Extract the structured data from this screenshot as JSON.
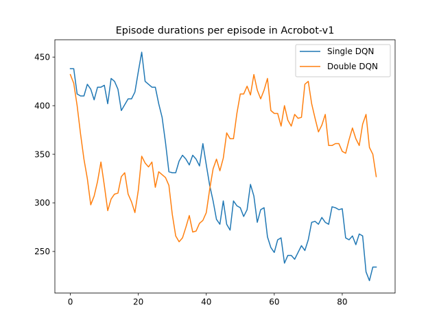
{
  "chart_data": {
    "type": "line",
    "title": "Episode durations per episode in Acrobot-v1",
    "xlabel": "",
    "ylabel": "",
    "xlim": [
      -4.55,
      95.55
    ],
    "ylim": [
      207.2,
      467.8
    ],
    "xticks": [
      0,
      20,
      40,
      60,
      80
    ],
    "yticks": [
      250,
      300,
      350,
      400,
      450
    ],
    "grid": false,
    "legend_position": "upper right",
    "series": [
      {
        "name": "Single DQN",
        "color": "#1f77b4",
        "x": [
          0,
          1,
          2,
          3,
          4,
          5,
          6,
          7,
          8,
          9,
          10,
          11,
          12,
          13,
          14,
          15,
          16,
          17,
          18,
          19,
          20,
          21,
          22,
          23,
          24,
          25,
          26,
          27,
          28,
          29,
          30,
          31,
          32,
          33,
          34,
          35,
          36,
          37,
          38,
          39,
          40,
          41,
          42,
          43,
          44,
          45,
          46,
          47,
          48,
          49,
          50,
          51,
          52,
          53,
          54,
          55,
          56,
          57,
          58,
          59,
          60,
          61,
          62,
          63,
          64,
          65,
          66,
          67,
          68,
          69,
          70,
          71,
          72,
          73,
          74,
          75,
          76,
          77,
          78,
          79,
          80,
          81,
          82,
          83,
          84,
          85,
          86,
          87,
          88,
          89,
          90
        ],
        "values": [
          438,
          438,
          412,
          410,
          410,
          422,
          417,
          406,
          419,
          419,
          421,
          402,
          428,
          425,
          417,
          395,
          401,
          407,
          407,
          414,
          435,
          455,
          425,
          422,
          419,
          419,
          402,
          388,
          362,
          332,
          331,
          331,
          343,
          349,
          345,
          339,
          349,
          345,
          338,
          361,
          339,
          318,
          302,
          283,
          278,
          302,
          278,
          272,
          302,
          297,
          295,
          286,
          293,
          319,
          307,
          280,
          293,
          295,
          265,
          254,
          249,
          262,
          264,
          238,
          246,
          246,
          242,
          249,
          256,
          251,
          262,
          280,
          281,
          278,
          285,
          280,
          278,
          296,
          295,
          293,
          294,
          264,
          262,
          266,
          257,
          268,
          266,
          229,
          220,
          234,
          234
        ]
      },
      {
        "name": "Double DQN",
        "color": "#ff7f0e",
        "x": [
          0,
          1,
          2,
          3,
          4,
          5,
          6,
          7,
          8,
          9,
          10,
          11,
          12,
          13,
          14,
          15,
          16,
          17,
          18,
          19,
          20,
          21,
          22,
          23,
          24,
          25,
          26,
          27,
          28,
          29,
          30,
          31,
          32,
          33,
          34,
          35,
          36,
          37,
          38,
          39,
          40,
          41,
          42,
          43,
          44,
          45,
          46,
          47,
          48,
          49,
          50,
          51,
          52,
          53,
          54,
          55,
          56,
          57,
          58,
          59,
          60,
          61,
          62,
          63,
          64,
          65,
          66,
          67,
          68,
          69,
          70,
          71,
          72,
          73,
          74,
          75,
          76,
          77,
          78,
          79,
          80,
          81,
          82,
          83,
          84,
          85,
          86,
          87,
          88,
          89,
          90
        ],
        "values": [
          432,
          423,
          400,
          371,
          345,
          325,
          298,
          307,
          322,
          342,
          318,
          292,
          304,
          309,
          310,
          327,
          331,
          309,
          301,
          290,
          313,
          348,
          341,
          337,
          342,
          316,
          332,
          329,
          326,
          318,
          288,
          266,
          260,
          264,
          275,
          287,
          270,
          271,
          279,
          282,
          290,
          314,
          335,
          345,
          333,
          346,
          372,
          366,
          366,
          392,
          412,
          412,
          420,
          411,
          432,
          416,
          407,
          416,
          428,
          395,
          392,
          392,
          379,
          400,
          385,
          379,
          391,
          387,
          388,
          422,
          425,
          402,
          387,
          373,
          380,
          391,
          359,
          359,
          361,
          361,
          353,
          351,
          365,
          377,
          366,
          359,
          381,
          391,
          357,
          350,
          327
        ]
      }
    ]
  }
}
